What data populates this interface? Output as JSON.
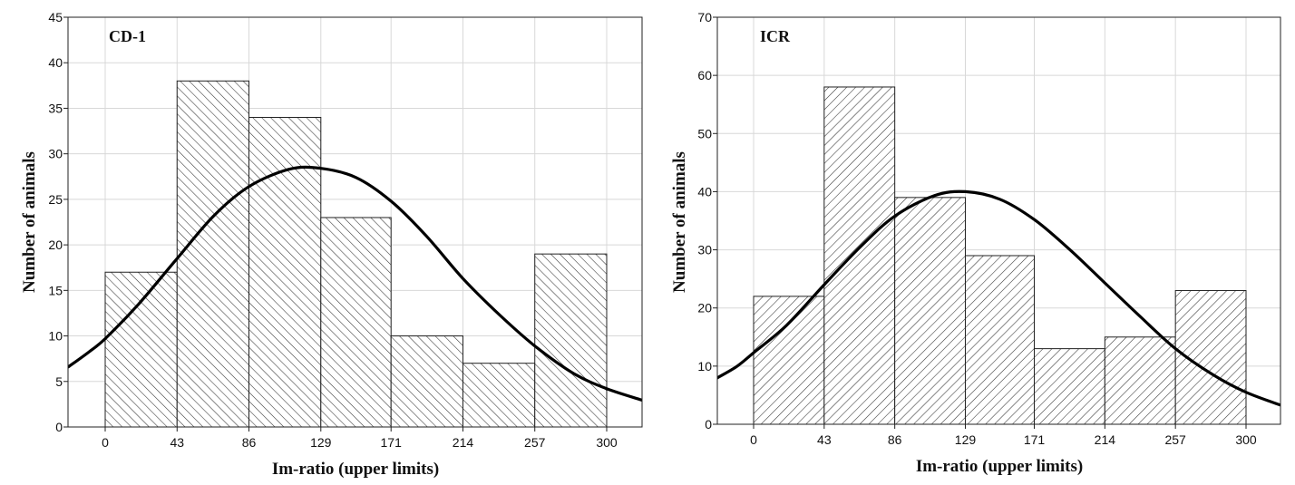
{
  "chart_data": [
    {
      "type": "bar",
      "panel_label": "CD-1",
      "xlabel": "Im-ratio (upper limits)",
      "ylabel": "Number of animals",
      "x_tick_labels": [
        "0",
        "43",
        "86",
        "129",
        "171",
        "214",
        "257",
        "300"
      ],
      "y_ticks": [
        0,
        5,
        10,
        15,
        20,
        25,
        30,
        35,
        40,
        45
      ],
      "ylim": [
        0,
        45
      ],
      "bins": [
        [
          0,
          43
        ],
        [
          43,
          86
        ],
        [
          86,
          129
        ],
        [
          129,
          171
        ],
        [
          171,
          214
        ],
        [
          214,
          257
        ],
        [
          257,
          300
        ]
      ],
      "values": [
        17,
        38,
        34,
        23,
        10,
        7,
        19
      ],
      "hatch": "backslash",
      "fit_curve": {
        "type": "normal",
        "x": [
          -22,
          -10,
          0,
          20,
          43,
          65,
          86,
          110,
          129,
          150,
          171,
          192,
          214,
          236,
          257,
          280,
          300,
          322
        ],
        "y": [
          6.6,
          8.2,
          9.7,
          13.5,
          18.5,
          23.2,
          26.4,
          28.3,
          28.4,
          27.4,
          24.8,
          21.0,
          16.3,
          12.3,
          8.9,
          5.9,
          4.2,
          2.9
        ]
      },
      "grid": true
    },
    {
      "type": "bar",
      "panel_label": "ICR",
      "xlabel": "Im-ratio (upper limits)",
      "ylabel": "Number of animals",
      "x_tick_labels": [
        "0",
        "43",
        "86",
        "129",
        "171",
        "214",
        "257",
        "300"
      ],
      "y_ticks": [
        0,
        10,
        20,
        30,
        40,
        50,
        60,
        70
      ],
      "ylim": [
        0,
        70
      ],
      "bins": [
        [
          0,
          43
        ],
        [
          43,
          86
        ],
        [
          86,
          129
        ],
        [
          129,
          171
        ],
        [
          171,
          214
        ],
        [
          214,
          257
        ],
        [
          257,
          300
        ]
      ],
      "values": [
        22,
        58,
        39,
        29,
        13,
        15,
        23
      ],
      "hatch": "slash",
      "fit_curve": {
        "type": "normal",
        "x": [
          -22,
          -10,
          0,
          20,
          43,
          65,
          86,
          110,
          129,
          150,
          171,
          192,
          214,
          236,
          257,
          280,
          300,
          322
        ],
        "y": [
          8.0,
          10.0,
          12.3,
          17.0,
          24.0,
          30.5,
          35.8,
          39.3,
          40.0,
          38.7,
          35.2,
          30.2,
          24.3,
          18.4,
          13.0,
          8.5,
          5.5,
          3.2
        ]
      },
      "grid": true
    }
  ]
}
